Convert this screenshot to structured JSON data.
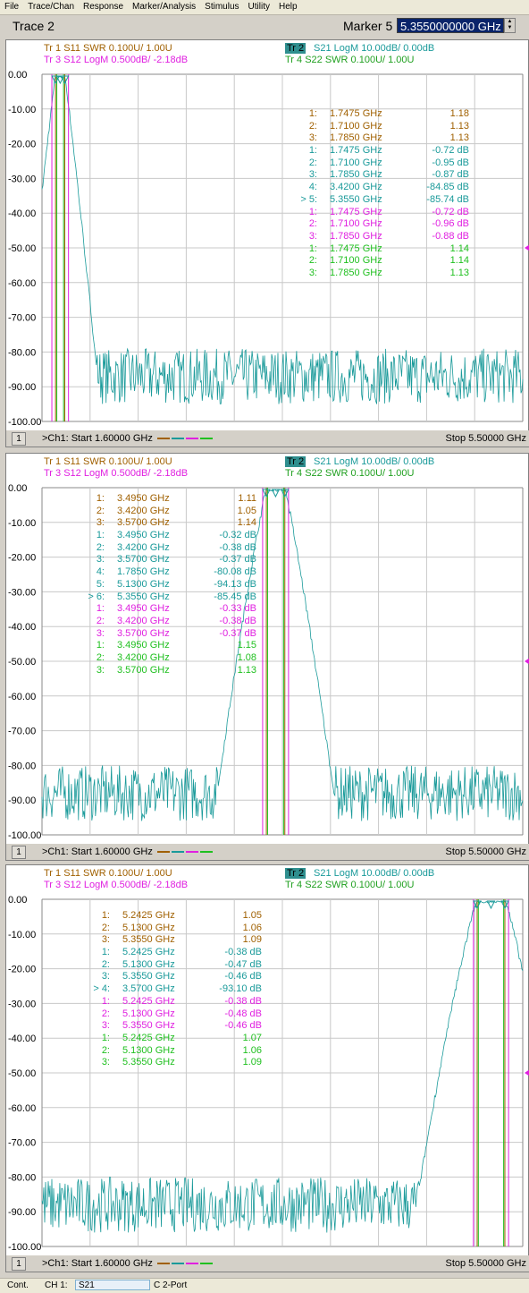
{
  "menu": [
    "File",
    "Trace/Chan",
    "Response",
    "Marker/Analysis",
    "Stimulus",
    "Utility",
    "Help"
  ],
  "toolbar": {
    "trace": "Trace 2",
    "marker_label": "Marker 5",
    "marker_value": "5.3550000000 GHz"
  },
  "colors": {
    "tr1": "#a06000",
    "tr2": "#1a9a9a",
    "tr3": "#e020e0",
    "tr4": "#20c020"
  },
  "status": {
    "mode": "Cont.",
    "channel": "CH 1:",
    "meas": "S21",
    "port": "C  2-Port"
  },
  "panels": [
    {
      "id": 1,
      "header": {
        "tr1": "Tr  1   S11  SWR 0.100U/  1.00U",
        "tr3": "Tr  3   S12  LogM 0.500dB/  -2.18dB",
        "tr2_box": "Tr  2",
        "tr2": "S21  LogM 10.00dB/  0.00dB",
        "tr4": "Tr  4   S22  SWR 0.100U/  1.00U"
      },
      "footer": {
        "num": "1",
        "start": ">Ch1: Start  1.60000 GHz",
        "stop": "Stop  5.50000 GHz"
      },
      "markers": [
        {
          "c": "tr1",
          "id": "1:",
          "f": "1.7475 GHz",
          "v": "1.18"
        },
        {
          "c": "tr1",
          "id": "2:",
          "f": "1.7100 GHz",
          "v": "1.13"
        },
        {
          "c": "tr1",
          "id": "3:",
          "f": "1.7850 GHz",
          "v": "1.13"
        },
        {
          "c": "tr2",
          "id": "1:",
          "f": "1.7475 GHz",
          "v": "-0.72 dB"
        },
        {
          "c": "tr2",
          "id": "2:",
          "f": "1.7100 GHz",
          "v": "-0.95 dB"
        },
        {
          "c": "tr2",
          "id": "3:",
          "f": "1.7850 GHz",
          "v": "-0.87 dB"
        },
        {
          "c": "tr2",
          "id": "4:",
          "f": "3.4200 GHz",
          "v": "-84.85 dB"
        },
        {
          "c": "tr2",
          "id": "> 5:",
          "f": "5.3550 GHz",
          "v": "-85.74 dB"
        },
        {
          "c": "tr3",
          "id": "1:",
          "f": "1.7475 GHz",
          "v": "-0.72 dB"
        },
        {
          "c": "tr3",
          "id": "2:",
          "f": "1.7100 GHz",
          "v": "-0.96 dB"
        },
        {
          "c": "tr3",
          "id": "3:",
          "f": "1.7850 GHz",
          "v": "-0.88 dB"
        },
        {
          "c": "tr4",
          "id": "1:",
          "f": "1.7475 GHz",
          "v": "1.14"
        },
        {
          "c": "tr4",
          "id": "2:",
          "f": "1.7100 GHz",
          "v": "1.14"
        },
        {
          "c": "tr4",
          "id": "3:",
          "f": "1.7850 GHz",
          "v": "1.13"
        }
      ]
    },
    {
      "id": 2,
      "header": {
        "tr1": "Tr  1   S11  SWR 0.100U/  1.00U",
        "tr3": "Tr  3   S12  LogM 0.500dB/  -2.18dB",
        "tr2_box": "Tr  2",
        "tr2": "S21  LogM 10.00dB/  0.00dB",
        "tr4": "Tr  4   S22  SWR 0.100U/  1.00U"
      },
      "footer": {
        "num": "1",
        "start": ">Ch1: Start  1.60000 GHz",
        "stop": "Stop  5.50000 GHz"
      },
      "markers": [
        {
          "c": "tr1",
          "id": "1:",
          "f": "3.4950 GHz",
          "v": "1.11"
        },
        {
          "c": "tr1",
          "id": "2:",
          "f": "3.4200 GHz",
          "v": "1.05"
        },
        {
          "c": "tr1",
          "id": "3:",
          "f": "3.5700 GHz",
          "v": "1.14"
        },
        {
          "c": "tr2",
          "id": "1:",
          "f": "3.4950 GHz",
          "v": "-0.32 dB"
        },
        {
          "c": "tr2",
          "id": "2:",
          "f": "3.4200 GHz",
          "v": "-0.38 dB"
        },
        {
          "c": "tr2",
          "id": "3:",
          "f": "3.5700 GHz",
          "v": "-0.37 dB"
        },
        {
          "c": "tr2",
          "id": "4:",
          "f": "1.7850 GHz",
          "v": "-80.08 dB"
        },
        {
          "c": "tr2",
          "id": "5:",
          "f": "5.1300 GHz",
          "v": "-94.13 dB"
        },
        {
          "c": "tr2",
          "id": "> 6:",
          "f": "5.3550 GHz",
          "v": "-85.45 dB"
        },
        {
          "c": "tr3",
          "id": "1:",
          "f": "3.4950 GHz",
          "v": "-0.33 dB"
        },
        {
          "c": "tr3",
          "id": "2:",
          "f": "3.4200 GHz",
          "v": "-0.38 dB"
        },
        {
          "c": "tr3",
          "id": "3:",
          "f": "3.5700 GHz",
          "v": "-0.37 dB"
        },
        {
          "c": "tr4",
          "id": "1:",
          "f": "3.4950 GHz",
          "v": "1.15"
        },
        {
          "c": "tr4",
          "id": "2:",
          "f": "3.4200 GHz",
          "v": "1.08"
        },
        {
          "c": "tr4",
          "id": "3:",
          "f": "3.5700 GHz",
          "v": "1.13"
        }
      ]
    },
    {
      "id": 3,
      "header": {
        "tr1": "Tr  1   S11  SWR 0.100U/  1.00U",
        "tr3": "Tr  3   S12  LogM 0.500dB/  -2.18dB",
        "tr2_box": "Tr  2",
        "tr2": "S21  LogM 10.00dB/  0.00dB",
        "tr4": "Tr  4   S22  SWR 0.100U/  1.00U"
      },
      "footer": {
        "num": "1",
        "start": ">Ch1: Start  1.60000 GHz",
        "stop": "Stop  5.50000 GHz"
      },
      "markers": [
        {
          "c": "tr1",
          "id": "1:",
          "f": "5.2425 GHz",
          "v": "1.05"
        },
        {
          "c": "tr1",
          "id": "2:",
          "f": "5.1300 GHz",
          "v": "1.06"
        },
        {
          "c": "tr1",
          "id": "3:",
          "f": "5.3550 GHz",
          "v": "1.09"
        },
        {
          "c": "tr2",
          "id": "1:",
          "f": "5.2425 GHz",
          "v": "-0.38 dB"
        },
        {
          "c": "tr2",
          "id": "2:",
          "f": "5.1300 GHz",
          "v": "-0.47 dB"
        },
        {
          "c": "tr2",
          "id": "3:",
          "f": "5.3550 GHz",
          "v": "-0.46 dB"
        },
        {
          "c": "tr2",
          "id": "> 4:",
          "f": "3.5700 GHz",
          "v": "-93.10 dB"
        },
        {
          "c": "tr3",
          "id": "1:",
          "f": "5.2425 GHz",
          "v": "-0.38 dB"
        },
        {
          "c": "tr3",
          "id": "2:",
          "f": "5.1300 GHz",
          "v": "-0.48 dB"
        },
        {
          "c": "tr3",
          "id": "3:",
          "f": "5.3550 GHz",
          "v": "-0.46 dB"
        },
        {
          "c": "tr4",
          "id": "1:",
          "f": "5.2425 GHz",
          "v": "1.07"
        },
        {
          "c": "tr4",
          "id": "2:",
          "f": "5.1300 GHz",
          "v": "1.06"
        },
        {
          "c": "tr4",
          "id": "3:",
          "f": "5.3550 GHz",
          "v": "1.09"
        }
      ]
    }
  ],
  "chart_data": [
    {
      "type": "line",
      "x_range_ghz": [
        1.6,
        5.5
      ],
      "ylim": [
        -100,
        0
      ],
      "y_ticks": [
        "0.00",
        "-10.00",
        "-20.00",
        "-30.00",
        "-40.00",
        "-50.00",
        "-60.00",
        "-70.00",
        "-80.00",
        "-90.00",
        "-100.00"
      ],
      "grid": true,
      "series": [
        {
          "name": "S21",
          "passband_ghz": [
            1.71,
            1.785
          ],
          "floor_db": -87
        }
      ]
    },
    {
      "type": "line",
      "x_range_ghz": [
        1.6,
        5.5
      ],
      "ylim": [
        -100,
        0
      ],
      "y_ticks": [
        "0.00",
        "-10.00",
        "-20.00",
        "-30.00",
        "-40.00",
        "-50.00",
        "-60.00",
        "-70.00",
        "-80.00",
        "-90.00",
        "-100.00"
      ],
      "grid": true,
      "series": [
        {
          "name": "S21",
          "passband_ghz": [
            3.42,
            3.57
          ],
          "floor_db": -88
        }
      ]
    },
    {
      "type": "line",
      "x_range_ghz": [
        1.6,
        5.5
      ],
      "ylim": [
        -100,
        0
      ],
      "y_ticks": [
        "0.00",
        "-10.00",
        "-20.00",
        "-30.00",
        "-40.00",
        "-50.00",
        "-60.00",
        "-70.00",
        "-80.00",
        "-90.00",
        "-100.00"
      ],
      "grid": true,
      "series": [
        {
          "name": "S21",
          "passband_ghz": [
            5.13,
            5.355
          ],
          "floor_db": -88
        }
      ]
    }
  ]
}
